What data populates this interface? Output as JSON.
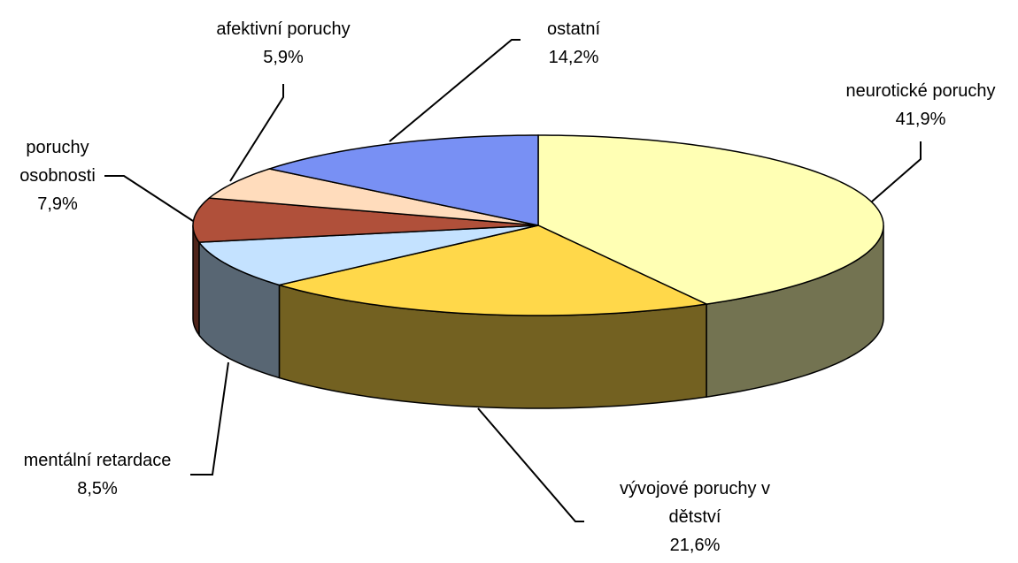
{
  "chart_data": {
    "type": "pie3d",
    "categories": [
      "neurotické poruchy",
      "vývojové poruchy v dětství",
      "mentální retardace",
      "poruchy osobnosti",
      "afektivní poruchy",
      "ostatní"
    ],
    "values": [
      41.9,
      21.6,
      8.5,
      7.9,
      5.9,
      14.2
    ],
    "value_labels": [
      "41,9%",
      "21,6%",
      "8,5%",
      "7,9%",
      "5,9%",
      "14,2%"
    ],
    "colors": [
      "#ffffb4",
      "#ffd84a",
      "#c4e2ff",
      "#b0503a",
      "#ffdcbc",
      "#7890f4"
    ]
  }
}
